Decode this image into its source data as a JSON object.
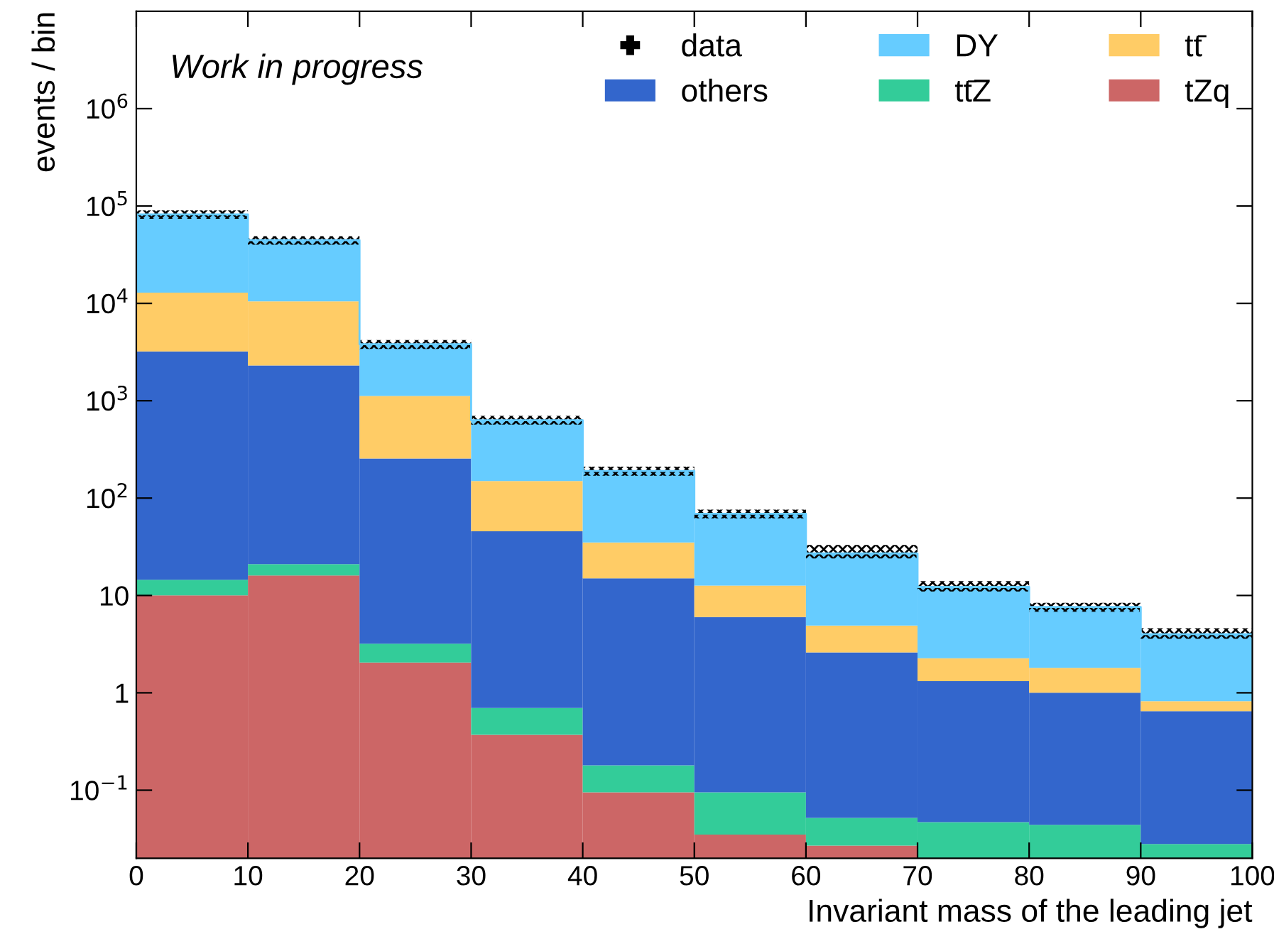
{
  "chart_data": {
    "type": "bar",
    "stacked": true,
    "log": "y",
    "xlabel": "Invariant mass of the leading jet",
    "ylabel": "events / bin",
    "x": [
      5,
      15,
      25,
      35,
      45,
      55,
      65,
      75,
      85,
      95
    ],
    "series": [
      {
        "name": "tZq",
        "color": "#cc6666",
        "values": [
          10,
          16,
          2.05,
          0.37,
          0.095,
          0.035,
          0.027,
          null,
          null,
          null
        ]
      },
      {
        "name": "tt̄Z",
        "color": "#33cc99",
        "values": [
          4.5,
          5,
          1.15,
          0.33,
          0.085,
          0.06,
          0.025,
          0.047,
          0.044,
          0.028
        ]
      },
      {
        "name": "others",
        "color": "#3366cc",
        "values": [
          3190,
          2280,
          252,
          45,
          14.8,
          5.9,
          2.55,
          1.27,
          0.96,
          0.62
        ]
      },
      {
        "name": "tt̄",
        "color": "#ffcc66",
        "values": [
          9700,
          8200,
          865,
          104,
          20,
          6.6,
          2.3,
          0.95,
          0.8,
          0.17
        ]
      },
      {
        "name": "DY",
        "color": "#66ccff",
        "values": [
          69100,
          34000,
          2680,
          480,
          155,
          56,
          22,
          9.9,
          5.8,
          3.2
        ]
      },
      {
        "type": "step",
        "color": "#66ccff",
        "x": [
          0,
          10,
          20,
          30,
          40,
          50,
          60,
          70,
          80,
          90,
          100
        ],
        "values": [
          82000,
          44500,
          3800,
          630,
          190,
          69,
          27,
          12.2,
          7.6,
          4.0,
          4.0
        ],
        "lower": [
          74000,
          40000,
          3400,
          570,
          170,
          62,
          24,
          11,
          6.8,
          3.6,
          3.6
        ],
        "upper": [
          90000,
          49000,
          4200,
          700,
          210,
          76,
          33,
          14,
          8.4,
          4.6,
          4.6
        ]
      },
      {
        "name": "data",
        "type": "scatter",
        "color": "#000000",
        "marker": "cross",
        "values": [
          null,
          null,
          null,
          null,
          null,
          null,
          null,
          null,
          null,
          null
        ]
      }
    ],
    "xlim": [
      0,
      100
    ],
    "xticks": [
      0,
      10,
      20,
      30,
      40,
      50,
      60,
      70,
      80,
      90,
      100
    ],
    "ylim": [
      0.02,
      10000000
    ],
    "yticks": [
      {
        "value": 0.1,
        "label": "10$^{−1}$"
      },
      1,
      10,
      {
        "value": 100,
        "label": "10$^{2}$"
      },
      {
        "value": 1000,
        "label": "10$^{3}$"
      },
      {
        "value": 10000,
        "label": "10$^{4}$"
      },
      {
        "value": 100000,
        "label": "10$^{5}$"
      },
      {
        "value": 1000000,
        "label": "10$^{6}$"
      }
    ],
    "legend": "top right",
    "grid": false,
    "annotations": [
      "Work in progress"
    ]
  }
}
